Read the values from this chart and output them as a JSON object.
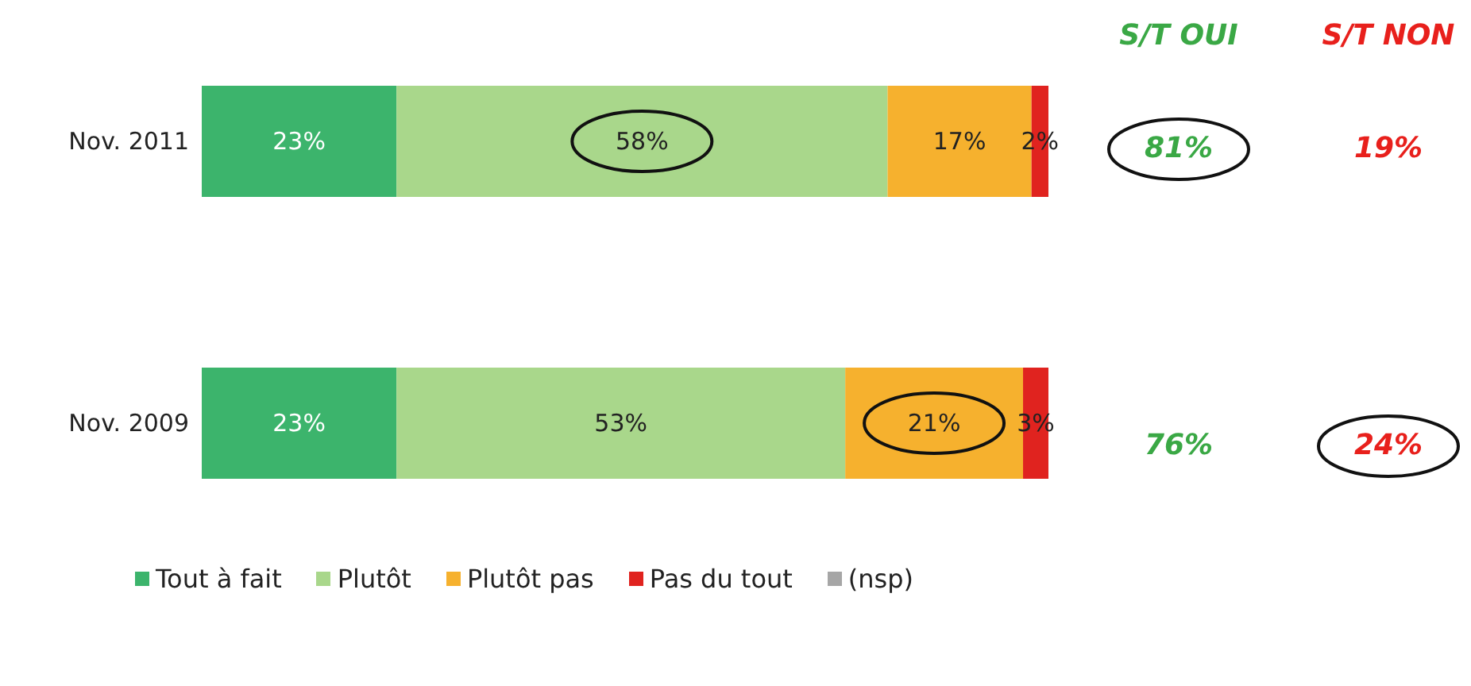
{
  "chart_data": {
    "type": "bar",
    "orientation": "horizontal",
    "stacked": true,
    "legend": "bottom",
    "categories": [
      "Nov. 2011",
      "Nov. 2009"
    ],
    "series": [
      {
        "name": "Tout à fait",
        "color": "#3cb46c",
        "values": [
          23,
          23
        ],
        "value_labels": [
          "23%",
          "23%"
        ]
      },
      {
        "name": "Plutôt",
        "color": "#a9d78b",
        "values": [
          58,
          53
        ],
        "value_labels": [
          "58%",
          "53%"
        ]
      },
      {
        "name": "Plutôt pas",
        "color": "#f6b12e",
        "values": [
          17,
          21
        ],
        "value_labels": [
          "17%",
          "21%"
        ]
      },
      {
        "name": "Pas du tout",
        "color": "#e0231f",
        "values": [
          2,
          3
        ],
        "value_labels": [
          "2%",
          "3%"
        ]
      },
      {
        "name": "(nsp)",
        "color": "#a6a6a6",
        "values": [
          null,
          null
        ]
      }
    ],
    "annotations": [
      "S/T OUI",
      "S/T NON",
      "81%",
      "19%",
      "76%",
      "24%"
    ]
  }
}
